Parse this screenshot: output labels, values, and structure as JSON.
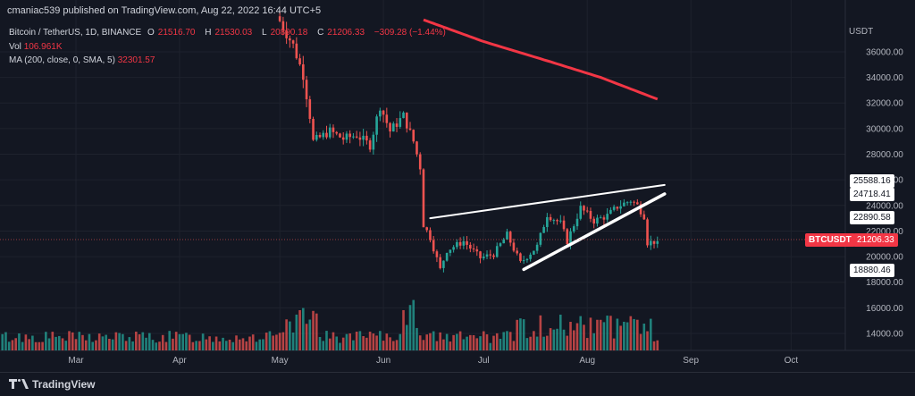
{
  "header": {
    "publisher_line": "cmaniac539 published on TradingView.com, Aug 22, 2022 16:44 UTC+5"
  },
  "symbol_line": {
    "name": "Bitcoin / TetherUS, 1D, BINANCE",
    "open_label": "O",
    "open": "21516.70",
    "high_label": "H",
    "high": "21530.03",
    "low_label": "L",
    "low": "20890.18",
    "close_label": "C",
    "close": "21206.33",
    "change": "−309.28 (−1.44%)"
  },
  "vol_line": {
    "label": "Vol",
    "value": "106.961K"
  },
  "ma_line": {
    "label": "MA (200, close, 0, SMA, 5)",
    "value": "32301.57"
  },
  "footer": {
    "brand": "TradingView"
  },
  "price_tags": {
    "symbol": "BTCUSDT",
    "last": "21206.33",
    "levels": [
      "25588.16",
      "24718.41",
      "22890.58",
      "18880.46"
    ]
  },
  "colors": {
    "up": "#26a69a",
    "down": "#ef5350",
    "ma": "#f23645",
    "vol_up": "#26a69a",
    "vol_down": "#ef5350",
    "trendline": "#ffffff",
    "background": "#131722",
    "grid": "#1e222d"
  },
  "chart_data": {
    "type": "candlestick",
    "unit": "USDT",
    "y_ticks": [
      14000,
      16000,
      18000,
      20000,
      22000,
      24000,
      26000,
      28000,
      30000,
      32000,
      34000,
      36000
    ],
    "y_tick_labels": [
      "14000.00",
      "16000.00",
      "18000.00",
      "20000.00",
      "22000.00",
      "24000.00",
      "26000.00",
      "28000.00",
      "30000.00",
      "32000.00",
      "34000.00",
      "36000.00"
    ],
    "ylim": [
      12800,
      38500
    ],
    "x_ticks": [
      "Mar",
      "Apr",
      "May",
      "Jun",
      "Jul",
      "Aug",
      "Sep",
      "Oct"
    ],
    "close_path": [
      [
        "May 01",
        38400
      ],
      [
        "May 05",
        36500
      ],
      [
        "May 08",
        34200
      ],
      [
        "May 10",
        31000
      ],
      [
        "May 11",
        29000
      ],
      [
        "May 13",
        29300
      ],
      [
        "May 16",
        29800
      ],
      [
        "May 20",
        29200
      ],
      [
        "May 24",
        29500
      ],
      [
        "May 28",
        28700
      ],
      [
        "May 31",
        31800
      ],
      [
        "Jun 03",
        29800
      ],
      [
        "Jun 07",
        31000
      ],
      [
        "Jun 10",
        29000
      ],
      [
        "Jun 12",
        27000
      ],
      [
        "Jun 13",
        22500
      ],
      [
        "Jun 15",
        21500
      ],
      [
        "Jun 18",
        19000
      ],
      [
        "Jun 20",
        20500
      ],
      [
        "Jun 25",
        21200
      ],
      [
        "Jun 30",
        19900
      ],
      [
        "Jul 04",
        20200
      ],
      [
        "Jul 08",
        21700
      ],
      [
        "Jul 12",
        19500
      ],
      [
        "Jul 17",
        20800
      ],
      [
        "Jul 20",
        23300
      ],
      [
        "Jul 24",
        22600
      ],
      [
        "Jul 26",
        21200
      ],
      [
        "Jul 30",
        23800
      ],
      [
        "Aug 03",
        22800
      ],
      [
        "Aug 07",
        23200
      ],
      [
        "Aug 10",
        23900
      ],
      [
        "Aug 14",
        24400
      ],
      [
        "Aug 16",
        24000
      ],
      [
        "Aug 18",
        23200
      ],
      [
        "Aug 19",
        21100
      ],
      [
        "Aug 22",
        21206
      ]
    ],
    "ma200": [
      [
        "Jun 13",
        38500
      ],
      [
        "Jul 01",
        36800
      ],
      [
        "Jul 20",
        35300
      ],
      [
        "Aug 05",
        34000
      ],
      [
        "Aug 22",
        32301
      ]
    ],
    "trendlines": [
      {
        "from": [
          "Jun 15",
          23000
        ],
        "to": [
          "Aug 22",
          25600
        ]
      },
      {
        "from": [
          "Jul 13",
          19000
        ],
        "to": [
          "Aug 22",
          24900
        ]
      }
    ]
  }
}
